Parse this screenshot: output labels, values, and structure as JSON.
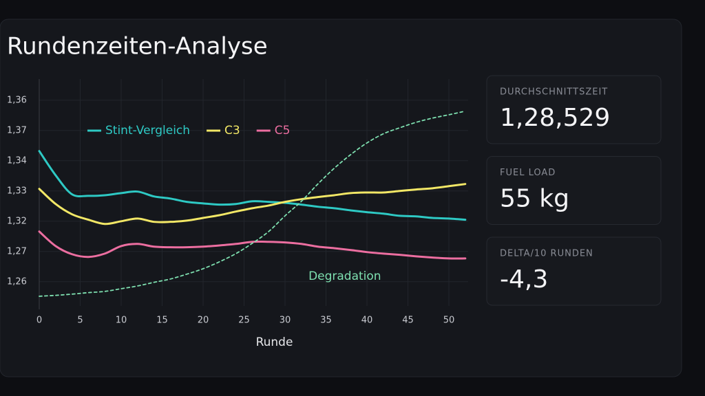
{
  "title": "Rundenzeiten-Analyse",
  "chart_data": {
    "type": "line",
    "xlabel": "Runde",
    "x": [
      0,
      2,
      4,
      6,
      8,
      10,
      12,
      14,
      16,
      18,
      20,
      22,
      24,
      26,
      28,
      30,
      32,
      34,
      36,
      38,
      40,
      42,
      44,
      46,
      48,
      50,
      52
    ],
    "xlim": [
      0,
      52.35
    ],
    "xticks": [
      0,
      5,
      10,
      15,
      20,
      25,
      30,
      35,
      40,
      45,
      50
    ],
    "ylim": [
      -0.8,
      6.7
    ],
    "yticks": [
      {
        "value": 0,
        "label": "1,26"
      },
      {
        "value": 1,
        "label": "1,27"
      },
      {
        "value": 2,
        "label": "1,32"
      },
      {
        "value": 3,
        "label": "1,33"
      },
      {
        "value": 4,
        "label": "1,34"
      },
      {
        "value": 5,
        "label": "1,37"
      },
      {
        "value": 6,
        "label": "1,36"
      }
    ],
    "grid": true,
    "legend": "upper left",
    "series": [
      {
        "name": "Stint-Vergleich",
        "color": "#2ec9c4",
        "values": [
          4.32,
          3.52,
          2.89,
          2.84,
          2.86,
          2.93,
          2.98,
          2.82,
          2.75,
          2.64,
          2.59,
          2.55,
          2.57,
          2.66,
          2.64,
          2.61,
          2.55,
          2.48,
          2.43,
          2.36,
          2.3,
          2.25,
          2.18,
          2.16,
          2.11,
          2.09,
          2.05
        ]
      },
      {
        "name": "C3",
        "color": "#f2e766",
        "values": [
          3.07,
          2.57,
          2.23,
          2.05,
          1.91,
          2.0,
          2.09,
          1.98,
          1.98,
          2.02,
          2.11,
          2.2,
          2.32,
          2.43,
          2.52,
          2.64,
          2.73,
          2.8,
          2.86,
          2.93,
          2.95,
          2.95,
          3.0,
          3.05,
          3.09,
          3.16,
          3.23
        ]
      },
      {
        "name": "C5",
        "color": "#ec6ea0",
        "values": [
          1.66,
          1.18,
          0.91,
          0.82,
          0.93,
          1.18,
          1.25,
          1.16,
          1.14,
          1.14,
          1.16,
          1.2,
          1.25,
          1.32,
          1.32,
          1.3,
          1.25,
          1.16,
          1.11,
          1.05,
          0.98,
          0.93,
          0.89,
          0.84,
          0.8,
          0.77,
          0.77
        ]
      },
      {
        "name": "Degradation",
        "color": "#7ee0b0",
        "dashed": true,
        "values": [
          -0.48,
          -0.45,
          -0.41,
          -0.36,
          -0.32,
          -0.23,
          -0.14,
          -0.02,
          0.09,
          0.25,
          0.43,
          0.66,
          0.93,
          1.27,
          1.66,
          2.18,
          2.66,
          3.23,
          3.75,
          4.2,
          4.59,
          4.89,
          5.09,
          5.27,
          5.41,
          5.52,
          5.64
        ]
      }
    ]
  },
  "cards": [
    {
      "label": "DURCHSCHNITTSZEIT",
      "value": "1,28,529"
    },
    {
      "label": "FUEL LOAD",
      "value": "55 kg"
    },
    {
      "label": "DELTA/10 RUNDEN",
      "value": "-4,3"
    }
  ]
}
